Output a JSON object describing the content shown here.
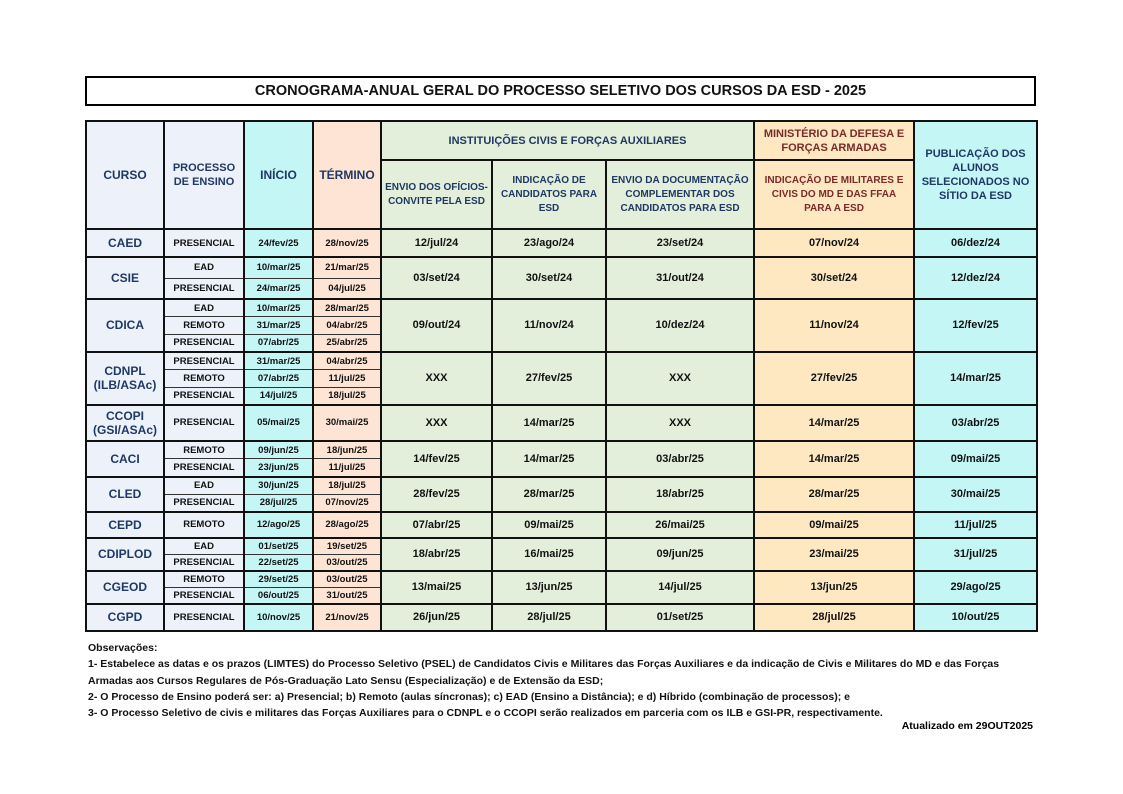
{
  "title": "CRONOGRAMA-ANUAL GERAL DO PROCESSO SELETIVO DOS CURSOS DA ESD - 2025",
  "headers": {
    "curso": "CURSO",
    "processo": "PROCESSO DE ENSINO",
    "inicio": "INÍCIO",
    "termino": "TÉRMINO",
    "civis_group": "INSTITUIÇÕES CIVIS E FORÇAS AUXILIARES",
    "md_group": "MINISTÉRIO DA DEFESA E FORÇAS ARMADAS",
    "publicacao": "PUBLICAÇÃO DOS ALUNOS SELECIONADOS NO SÍTIO DA ESD",
    "envio_oficios": "ENVIO DOS OFÍCIOS-CONVITE PELA ESD",
    "indicacao_candidatos": "INDICAÇÃO DE CANDIDATOS PARA ESD",
    "envio_documentacao": "ENVIO DA DOCUMENTAÇÃO COMPLEMENTAR DOS CANDIDATOS PARA ESD",
    "indicacao_md": "INDICAÇÃO DE MILITARES E CIVIS DO MD E DAS FFAA PARA A ESD"
  },
  "courses": [
    {
      "curso": "CAED",
      "sub": [
        {
          "processo": "PRESENCIAL",
          "inicio": "24/fev/25",
          "termino": "28/nov/25"
        }
      ],
      "envio": "12/jul/24",
      "indicacao": "23/ago/24",
      "documentacao": "23/set/24",
      "md": "07/nov/24",
      "publicacao": "06/dez/24"
    },
    {
      "curso": "CSIE",
      "sub": [
        {
          "processo": "EAD",
          "inicio": "10/mar/25",
          "termino": "21/mar/25"
        },
        {
          "processo": "PRESENCIAL",
          "inicio": "24/mar/25",
          "termino": "04/jul/25"
        }
      ],
      "envio": "03/set/24",
      "indicacao": "30/set/24",
      "documentacao": "31/out/24",
      "md": "30/set/24",
      "publicacao": "12/dez/24"
    },
    {
      "curso": "CDICA",
      "sub": [
        {
          "processo": "EAD",
          "inicio": "10/mar/25",
          "termino": "28/mar/25"
        },
        {
          "processo": "REMOTO",
          "inicio": "31/mar/25",
          "termino": "04/abr/25"
        },
        {
          "processo": "PRESENCIAL",
          "inicio": "07/abr/25",
          "termino": "25/abr/25"
        }
      ],
      "envio": "09/out/24",
      "indicacao": "11/nov/24",
      "documentacao": "10/dez/24",
      "md": "11/nov/24",
      "publicacao": "12/fev/25"
    },
    {
      "curso": "CDNPL (ILB/ASAc)",
      "sub": [
        {
          "processo": "PRESENCIAL",
          "inicio": "31/mar/25",
          "termino": "04/abr/25"
        },
        {
          "processo": "REMOTO",
          "inicio": "07/abr/25",
          "termino": "11/jul/25"
        },
        {
          "processo": "PRESENCIAL",
          "inicio": "14/jul/25",
          "termino": "18/jul/25"
        }
      ],
      "envio": "XXX",
      "indicacao": "27/fev/25",
      "documentacao": "XXX",
      "md": "27/fev/25",
      "publicacao": "14/mar/25"
    },
    {
      "curso": "CCOPI (GSI/ASAc)",
      "sub": [
        {
          "processo": "PRESENCIAL",
          "inicio": "05/mai/25",
          "termino": "30/mai/25"
        }
      ],
      "envio": "XXX",
      "indicacao": "14/mar/25",
      "documentacao": "XXX",
      "md": "14/mar/25",
      "publicacao": "03/abr/25"
    },
    {
      "curso": "CACI",
      "sub": [
        {
          "processo": "REMOTO",
          "inicio": "09/jun/25",
          "termino": "18/jun/25"
        },
        {
          "processo": "PRESENCIAL",
          "inicio": "23/jun/25",
          "termino": "11/jul/25"
        }
      ],
      "envio": "14/fev/25",
      "indicacao": "14/mar/25",
      "documentacao": "03/abr/25",
      "md": "14/mar/25",
      "publicacao": "09/mai/25"
    },
    {
      "curso": "CLED",
      "sub": [
        {
          "processo": "EAD",
          "inicio": "30/jun/25",
          "termino": "18/jul/25"
        },
        {
          "processo": "PRESENCIAL",
          "inicio": "28/jul/25",
          "termino": "07/nov/25"
        }
      ],
      "envio": "28/fev/25",
      "indicacao": "28/mar/25",
      "documentacao": "18/abr/25",
      "md": "28/mar/25",
      "publicacao": "30/mai/25"
    },
    {
      "curso": "CEPD",
      "sub": [
        {
          "processo": "REMOTO",
          "inicio": "12/ago/25",
          "termino": "28/ago/25"
        }
      ],
      "envio": "07/abr/25",
      "indicacao": "09/mai/25",
      "documentacao": "26/mai/25",
      "md": "09/mai/25",
      "publicacao": "11/jul/25"
    },
    {
      "curso": "CDIPLOD",
      "sub": [
        {
          "processo": "EAD",
          "inicio": "01/set/25",
          "termino": "19/set/25"
        },
        {
          "processo": "PRESENCIAL",
          "inicio": "22/set/25",
          "termino": "03/out/25"
        }
      ],
      "envio": "18/abr/25",
      "indicacao": "16/mai/25",
      "documentacao": "09/jun/25",
      "md": "23/mai/25",
      "publicacao": "31/jul/25"
    },
    {
      "curso": "CGEOD",
      "sub": [
        {
          "processo": "REMOTO",
          "inicio": "29/set/25",
          "termino": "03/out/25"
        },
        {
          "processo": "PRESENCIAL",
          "inicio": "06/out/25",
          "termino": "31/out/25"
        }
      ],
      "envio": "13/mai/25",
      "indicacao": "13/jun/25",
      "documentacao": "14/jul/25",
      "md": "13/jun/25",
      "publicacao": "29/ago/25"
    },
    {
      "curso": "CGPD",
      "sub": [
        {
          "processo": "PRESENCIAL",
          "inicio": "10/nov/25",
          "termino": "21/nov/25"
        }
      ],
      "envio": "26/jun/25",
      "indicacao": "28/jul/25",
      "documentacao": "01/set/25",
      "md": "28/jul/25",
      "publicacao": "10/out/25"
    }
  ],
  "notes": {
    "heading": "Observações:",
    "items": [
      "1- Estabelece as datas e os prazos (LIMTES) do Processo Seletivo (PSEL) de Candidatos Civis e Militares das Forças Auxiliares e da indicação de Civis e Militares do MD e das Forças Armadas aos Cursos Regulares de Pós-Graduação Lato Sensu (Especialização) e de Extensão da ESD;",
      "2- O Processo de Ensino poderá ser: a) Presencial; b) Remoto (aulas síncronas); c) EAD (Ensino a Distância); e d) Híbrido (combinação de processos); e",
      "3- O Processo Seletivo de civis e militares das Forças Auxiliares para o CDNPL e o CCOPI serão realizados em parceria com os ILB e GSI-PR, respectivamente."
    ]
  },
  "updated": "Atualizado em 29OUT2025"
}
